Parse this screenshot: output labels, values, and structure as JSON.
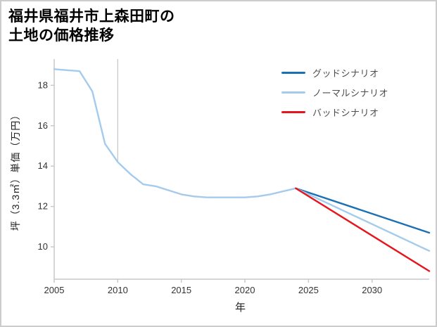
{
  "title": {
    "line1": "福井県福井市上森田町の",
    "line2": "土地の価格推移"
  },
  "chart_data": {
    "type": "line",
    "title": "福井県福井市上森田町の土地の価格推移",
    "xlabel": "年",
    "ylabel": "坪（3.3㎡）単価（万円）",
    "xlim": [
      2005,
      2034.5
    ],
    "ylim": [
      8.4,
      19.3
    ],
    "x_ticks": [
      2005,
      2010,
      2015,
      2020,
      2025,
      2030
    ],
    "y_ticks": [
      10,
      12,
      14,
      16,
      18
    ],
    "grid": false,
    "legend_position": "upper right",
    "series": [
      {
        "name": "price-history",
        "color": "#a5cbec",
        "x": [
          2005,
          2006,
          2007,
          2008,
          2009,
          2010,
          2011,
          2012,
          2013,
          2014,
          2015,
          2016,
          2017,
          2018,
          2019,
          2020,
          2021,
          2022,
          2023,
          2024
        ],
        "y": [
          18.8,
          18.75,
          18.7,
          17.7,
          15.1,
          14.2,
          13.6,
          13.1,
          13.0,
          12.8,
          12.6,
          12.5,
          12.45,
          12.45,
          12.45,
          12.45,
          12.5,
          12.6,
          12.75,
          12.9
        ]
      },
      {
        "name": "グッドシナリオ",
        "color": "#1a6fb5",
        "x": [
          2024,
          2034.5
        ],
        "y": [
          12.9,
          10.7
        ]
      },
      {
        "name": "ノーマルシナリオ",
        "color": "#a5cbec",
        "x": [
          2024,
          2034.5
        ],
        "y": [
          12.9,
          9.8
        ]
      },
      {
        "name": "バッドシナリオ",
        "color": "#e8141c",
        "x": [
          2024,
          2034.5
        ],
        "y": [
          12.9,
          8.8
        ]
      }
    ],
    "legend": [
      {
        "label": "グッドシナリオ",
        "color": "#1a6fb5"
      },
      {
        "label": "ノーマルシナリオ",
        "color": "#a5cbec"
      },
      {
        "label": "バッドシナリオ",
        "color": "#e8141c"
      }
    ],
    "vline": {
      "x": 2010,
      "to_y": 14.2
    }
  },
  "colors": {
    "background": "#ffffff",
    "border": "#cccccc",
    "axis": "#c9c9c9",
    "tick_label": "#333333",
    "title": "#000000",
    "legend_label": "#4d4d4d"
  }
}
